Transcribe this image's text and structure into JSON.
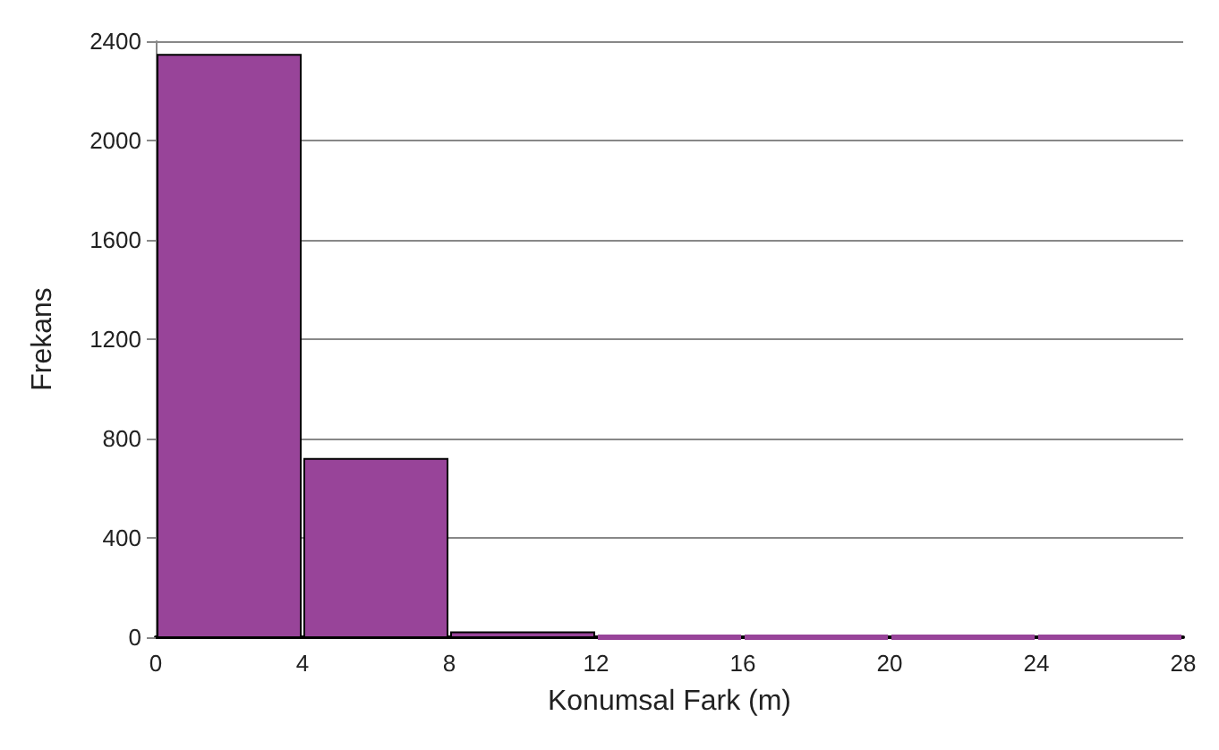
{
  "chart_data": {
    "type": "histogram",
    "xlabel": "Konumsal Fark (m)",
    "ylabel": "Frekans",
    "bins": [
      0,
      4,
      8,
      12,
      16,
      20,
      24,
      28
    ],
    "values": [
      2345,
      718,
      20,
      0,
      0,
      0,
      0
    ],
    "color": "#984499",
    "xlim": [
      0,
      28
    ],
    "xticks": [
      0,
      4,
      8,
      12,
      16,
      20,
      24,
      28
    ],
    "ylim": [
      0,
      2400
    ],
    "yticks": [
      0,
      400,
      800,
      1200,
      1600,
      2000,
      2400
    ],
    "grid": "y"
  }
}
